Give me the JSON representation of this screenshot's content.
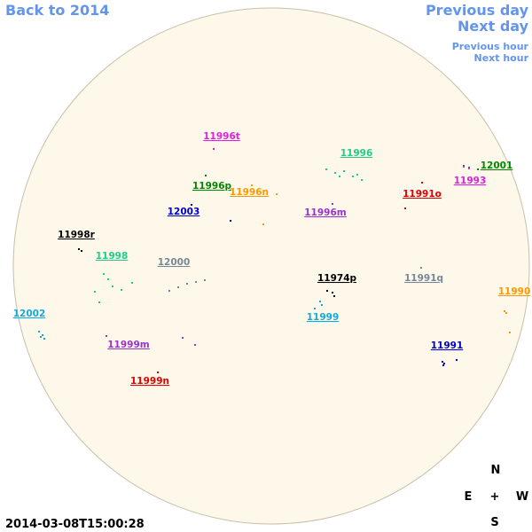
{
  "nav": {
    "back": "Back to 2014",
    "previous_day": "Previous day",
    "next_day": "Next day",
    "previous_hour": "Previous hour",
    "next_hour": "Next hour"
  },
  "regions": [
    {
      "label": "11996t",
      "color": "#e020e0"
    },
    {
      "label": "11996",
      "color": "#22cc88"
    },
    {
      "label": "12001",
      "color": "#008800"
    },
    {
      "label": "11993",
      "color": "#e020e0"
    },
    {
      "label": "11996p",
      "color": "#008800"
    },
    {
      "label": "11996n",
      "color": "#ff9900"
    },
    {
      "label": "11991o",
      "color": "#dd0000"
    },
    {
      "label": "12003",
      "color": "#0000cc"
    },
    {
      "label": "11996m",
      "color": "#9933cc"
    },
    {
      "label": "11998r",
      "color": "#000000"
    },
    {
      "label": "11998",
      "color": "#22cc88"
    },
    {
      "label": "12000",
      "color": "#778899"
    },
    {
      "label": "11974p",
      "color": "#000000"
    },
    {
      "label": "11991q",
      "color": "#778899"
    },
    {
      "label": "11990",
      "color": "#ff9900"
    },
    {
      "label": "12002",
      "color": "#11aadd"
    },
    {
      "label": "11999",
      "color": "#11aadd"
    },
    {
      "label": "11999m",
      "color": "#9933cc"
    },
    {
      "label": "11991",
      "color": "#0000cc"
    },
    {
      "label": "11999n",
      "color": "#dd0000"
    }
  ],
  "timestamp": "2014-03-08T15:00:28",
  "compass": {
    "north": "N",
    "east": "E",
    "center": "+",
    "west": "W",
    "south": "S"
  }
}
